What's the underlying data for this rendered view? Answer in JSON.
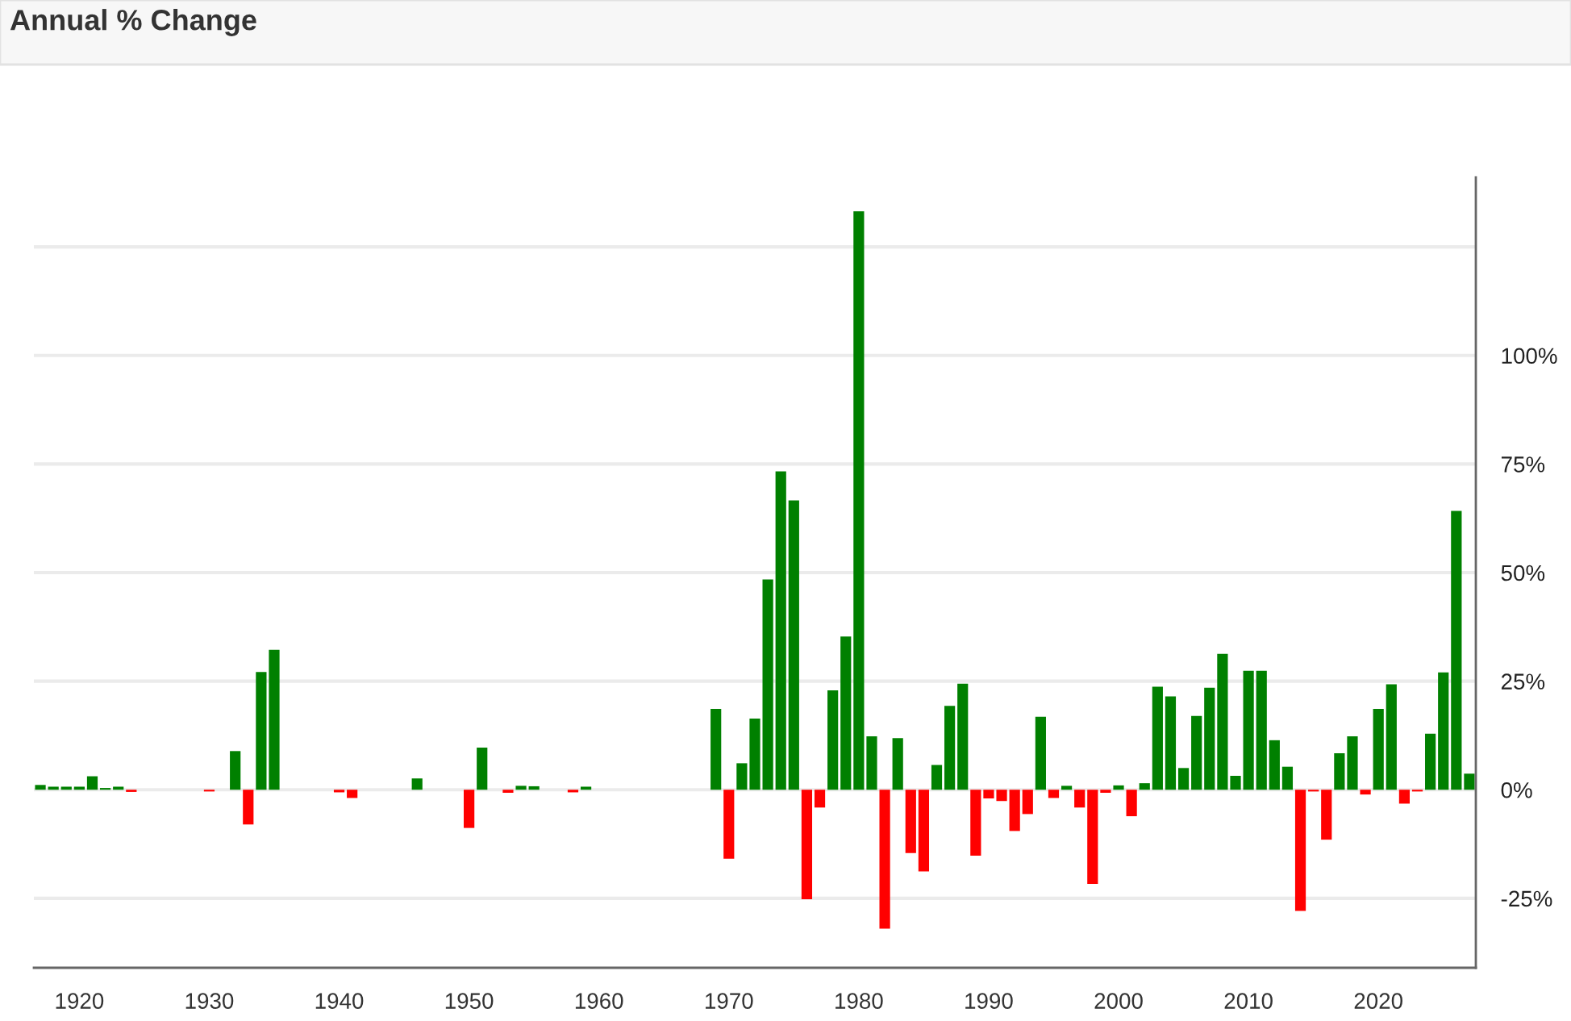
{
  "chart_data": {
    "type": "bar",
    "title": "Annual % Change",
    "series": [
      {
        "color": "#008000",
        "x": [
          1917,
          1918,
          1919,
          1920,
          1921,
          1922,
          1923,
          1932,
          1934,
          1935,
          1946,
          1951,
          1954,
          1955,
          1959,
          1969,
          1971,
          1972,
          1973,
          1974,
          1975,
          1978,
          1979,
          1980,
          1981,
          1983,
          1986,
          1987,
          1988,
          1994,
          1996,
          2000,
          2002,
          2003,
          2004,
          2005,
          2006,
          2007,
          2008,
          2009,
          2010,
          2011,
          2012,
          2013,
          2017,
          2018,
          2020,
          2021,
          2024,
          2025,
          2026,
          2027
        ],
        "values": [
          1.1,
          0.7,
          0.7,
          0.7,
          3.1,
          0.4,
          0.7,
          8.9,
          27.1,
          32.2,
          2.6,
          9.7,
          0.9,
          0.8,
          0.7,
          18.6,
          6.1,
          16.4,
          48.4,
          73.3,
          66.6,
          22.9,
          35.3,
          133.2,
          12.3,
          11.9,
          5.7,
          19.3,
          24.4,
          16.8,
          0.9,
          1.0,
          1.5,
          23.7,
          21.5,
          5.0,
          17.0,
          23.5,
          31.3,
          3.2,
          27.4,
          27.4,
          11.4,
          5.3,
          8.4,
          12.3,
          18.6,
          24.3,
          12.9,
          27.0,
          64.2,
          3.7
        ]
      },
      {
        "color": "#ff0000",
        "x": [
          1924,
          1930,
          1933,
          1940,
          1941,
          1950,
          1953,
          1958,
          1970,
          1976,
          1977,
          1982,
          1984,
          1985,
          1989,
          1990,
          1991,
          1992,
          1993,
          1995,
          1997,
          1998,
          1999,
          2001,
          2014,
          2015,
          2016,
          2019,
          2022,
          2023
        ],
        "values": [
          -0.5,
          -0.4,
          -8.0,
          -0.6,
          -1.9,
          -8.8,
          -0.7,
          -0.6,
          -15.9,
          -25.2,
          -4.1,
          -32.0,
          -14.6,
          -18.8,
          -15.2,
          -2.0,
          -2.6,
          -9.5,
          -5.6,
          -1.9,
          -4.1,
          -21.7,
          -0.7,
          -6.1,
          -27.9,
          -0.4,
          -11.5,
          -1.1,
          -3.2,
          -0.4
        ]
      }
    ],
    "xlim": [
      1916.5,
      2027.5
    ],
    "xticks": [
      1920,
      1930,
      1940,
      1950,
      1960,
      1970,
      1980,
      1990,
      2000,
      2010,
      2020
    ],
    "ylim": [
      -41,
      141
    ],
    "yticks": [
      {
        "value": -25,
        "label": "-25%"
      },
      {
        "value": 0,
        "label": "0%"
      },
      {
        "value": 25,
        "label": "25%"
      },
      {
        "value": 50,
        "label": "50%"
      },
      {
        "value": 75,
        "label": "75%"
      },
      {
        "value": 100,
        "label": "100%"
      },
      {
        "value": 125,
        "label": null
      }
    ],
    "grid": "y"
  }
}
